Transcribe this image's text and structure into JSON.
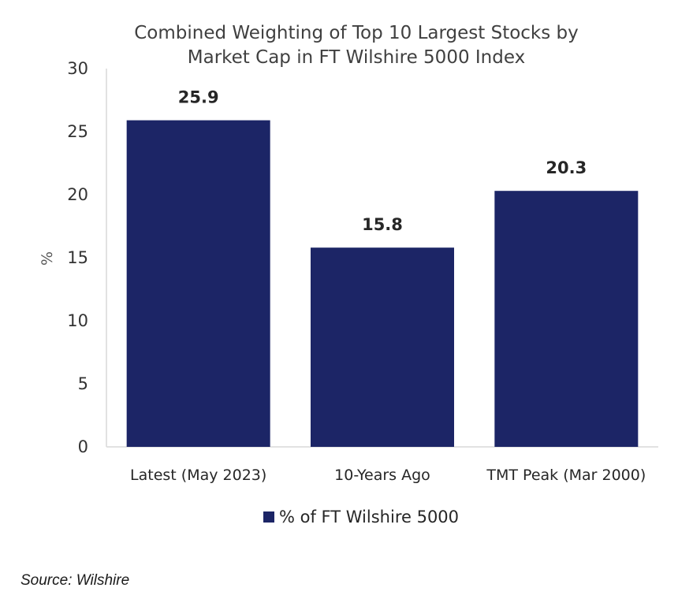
{
  "chart_data": {
    "type": "bar",
    "title_lines": [
      "Combined Weighting of Top 10 Largest Stocks by",
      "Market Cap in FT Wilshire 5000 Index"
    ],
    "categories": [
      "Latest (May 2023)",
      "10-Years Ago",
      "TMT Peak (Mar 2000)"
    ],
    "series": [
      {
        "name": "% of FT Wilshire 5000",
        "values": [
          25.9,
          15.8,
          20.3
        ],
        "color": "#1c2566"
      }
    ],
    "data_labels": [
      "25.9",
      "15.8",
      "20.3"
    ],
    "ylabel": "%",
    "xlabel": "",
    "ylim": [
      0,
      30
    ],
    "yticks": [
      "0",
      "5",
      "10",
      "15",
      "20",
      "25",
      "30"
    ],
    "grid": false,
    "legend_position": "bottom"
  },
  "footer": {
    "source": "Source: Wilshire"
  }
}
